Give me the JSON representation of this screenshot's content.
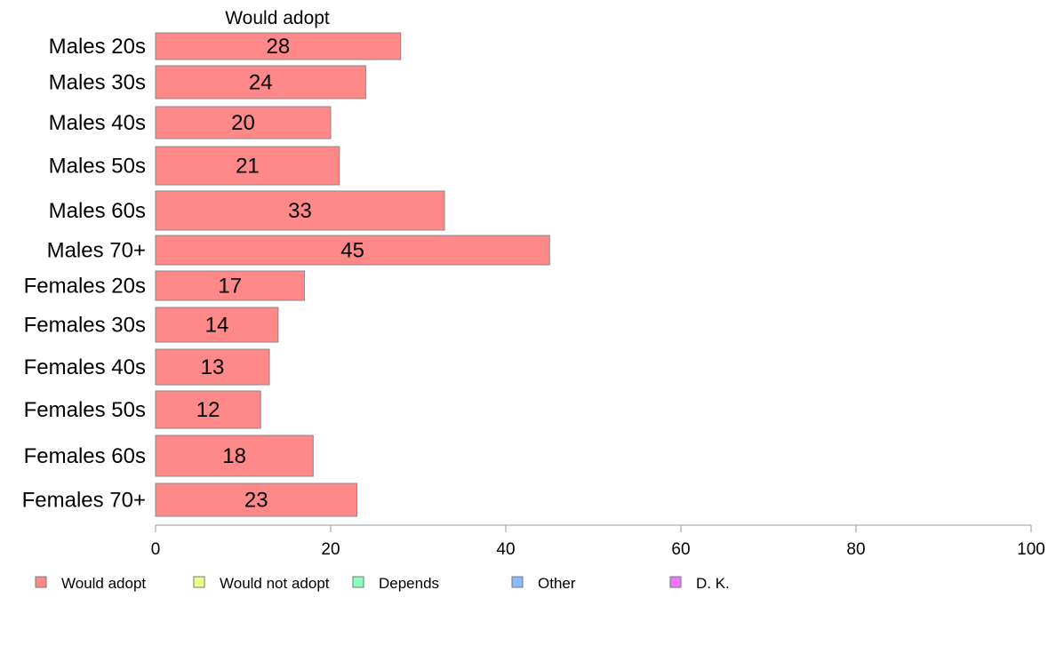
{
  "chart_data": {
    "type": "bar",
    "orientation": "horizontal",
    "column_header": "Would adopt",
    "categories": [
      "Males 20s",
      "Males 30s",
      "Males 40s",
      "Males 50s",
      "Males 60s",
      "Males 70+",
      "Females 20s",
      "Females 30s",
      "Females 40s",
      "Females 50s",
      "Females 60s",
      "Females 70+"
    ],
    "series": [
      {
        "name": "Would adopt",
        "values": [
          28,
          24,
          20,
          21,
          33,
          45,
          17,
          14,
          13,
          12,
          18,
          23
        ]
      }
    ],
    "bar_labels": [
      "28",
      "24",
      "20",
      "21",
      "33",
      "45",
      "17",
      "14",
      "13",
      "12",
      "18",
      "23"
    ],
    "xlim": [
      0,
      100
    ],
    "xticks": [
      0,
      20,
      40,
      60,
      80,
      100
    ],
    "xtick_labels": [
      "0",
      "20",
      "40",
      "60",
      "80",
      "100"
    ],
    "grid": false,
    "legend_position": "bottom",
    "legend": [
      {
        "label": "Would adopt",
        "color": "#ff8888"
      },
      {
        "label": "Would not adopt",
        "color": "#eeff88"
      },
      {
        "label": "Depends",
        "color": "#88ffbb"
      },
      {
        "label": "Other",
        "color": "#88bbff"
      },
      {
        "label": "D. K.",
        "color": "#ee77ff"
      }
    ],
    "bar_color": "#ff8888"
  }
}
